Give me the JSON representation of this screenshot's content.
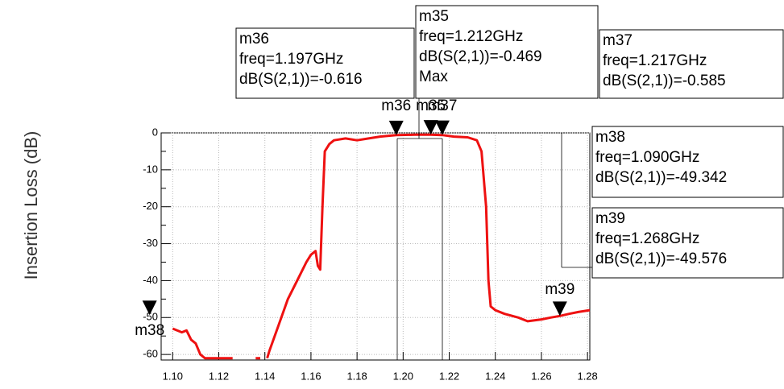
{
  "chart_data": {
    "type": "line",
    "ylabel": "Insertion Loss (dB)",
    "xlim": [
      1.095,
      1.281
    ],
    "ylim": [
      -61.5,
      0
    ],
    "xticks": [
      {
        "value": 1.1,
        "label": "1.10"
      },
      {
        "value": 1.12,
        "label": "1.12"
      },
      {
        "value": 1.14,
        "label": "1.14"
      },
      {
        "value": 1.16,
        "label": "1.16"
      },
      {
        "value": 1.18,
        "label": "1.18"
      },
      {
        "value": 1.2,
        "label": "1.20"
      },
      {
        "value": 1.22,
        "label": "1.22"
      },
      {
        "value": 1.24,
        "label": "1.24"
      },
      {
        "value": 1.26,
        "label": "1.26"
      },
      {
        "value": 1.28,
        "label": "1.28"
      }
    ],
    "yticks": [
      0,
      -10,
      -20,
      -30,
      -40,
      -50,
      -60
    ],
    "series": [
      {
        "color": "#ee1111",
        "x": [
          1.1,
          1.104,
          1.106,
          1.108,
          1.11,
          1.112,
          1.114,
          1.116,
          1.126,
          null,
          1.136,
          1.138,
          null,
          1.141,
          1.142,
          1.146,
          1.15,
          1.154,
          1.158,
          1.16,
          1.162,
          1.163,
          1.164,
          1.165,
          1.166,
          1.168,
          1.17,
          1.175,
          1.18,
          1.185,
          1.19,
          1.197,
          1.205,
          1.212,
          1.217,
          1.222,
          1.228,
          1.232,
          1.234,
          1.236,
          1.237,
          1.238,
          1.24,
          1.244,
          1.25,
          1.254,
          1.26,
          1.264,
          1.268,
          1.272,
          1.276,
          1.281
        ],
        "values": [
          -53,
          -54,
          -53.5,
          -56,
          -57,
          -60,
          -61,
          -61,
          -61,
          null,
          -61,
          -61,
          null,
          -61,
          -59,
          -52,
          -45,
          -40,
          -35,
          -33,
          -32,
          -36,
          -37,
          -20,
          -5,
          -3,
          -2,
          -1.5,
          -2,
          -1.5,
          -1,
          -0.616,
          -0.5,
          -0.469,
          -0.585,
          -1,
          -1.2,
          -2,
          -5,
          -20,
          -40,
          -47,
          -48,
          -49,
          -50,
          -51,
          -50.5,
          -50,
          -49.576,
          -49,
          -48.5,
          -48
        ]
      }
    ],
    "markers": [
      {
        "name": "m36",
        "freq": 1.197,
        "freq_label": "freq=1.197GHz",
        "value": -0.616,
        "value_label": "dB(S(2,1))=-0.616"
      },
      {
        "name": "m35",
        "freq": 1.212,
        "freq_label": "freq=1.212GHz",
        "value": -0.469,
        "value_label": "dB(S(2,1))=-0.469",
        "note": "Max"
      },
      {
        "name": "m37",
        "freq": 1.217,
        "freq_label": "freq=1.217GHz",
        "value": -0.585,
        "value_label": "dB(S(2,1))=-0.585"
      },
      {
        "name": "m38",
        "freq": 1.09,
        "freq_label": "freq=1.090GHz",
        "value": -49.342,
        "value_label": "dB(S(2,1))=-49.342"
      },
      {
        "name": "m39",
        "freq": 1.268,
        "freq_label": "freq=1.268GHz",
        "value": -49.576,
        "value_label": "dB(S(2,1))=-49.576"
      }
    ]
  }
}
